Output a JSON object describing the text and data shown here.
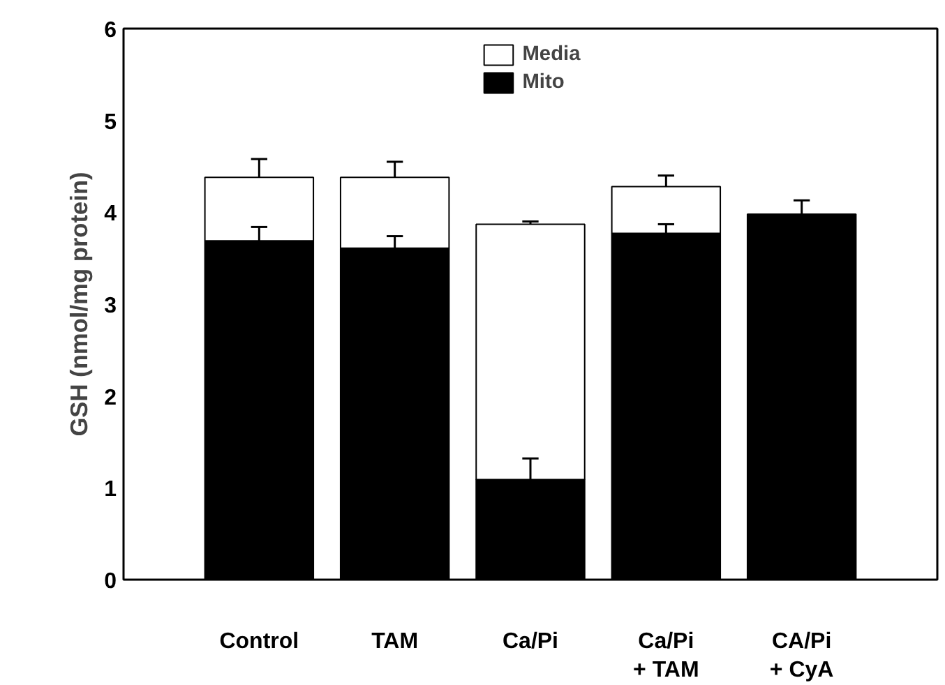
{
  "chart_data": {
    "type": "bar",
    "stacked": true,
    "ylabel": "GSH (nmol/mg protein)",
    "categories": [
      "Control",
      "TAM",
      "Ca/Pi",
      "Ca/Pi\n+ TAM",
      "CA/Pi\n+ CyA"
    ],
    "series": [
      {
        "name": "Mito",
        "color": "#000000",
        "values": [
          3.69,
          3.61,
          1.09,
          3.77,
          3.98
        ],
        "errors": [
          [
            3.69,
            3.84
          ],
          [
            3.61,
            3.74
          ],
          [
            1.09,
            1.32
          ],
          [
            3.77,
            3.87
          ],
          [
            3.98,
            4.13
          ]
        ]
      },
      {
        "name": "Media",
        "color": "#ffffff",
        "values": [
          0.69,
          0.77,
          2.78,
          0.51,
          null
        ],
        "errors": [
          [
            4.38,
            4.58
          ],
          [
            4.38,
            4.55
          ],
          [
            3.87,
            3.9
          ],
          [
            4.28,
            4.4
          ],
          null
        ]
      }
    ],
    "ylim": [
      0,
      6
    ],
    "yticks": [
      0,
      1,
      2,
      3,
      4,
      5,
      6
    ],
    "grid": false,
    "legend": "top"
  }
}
